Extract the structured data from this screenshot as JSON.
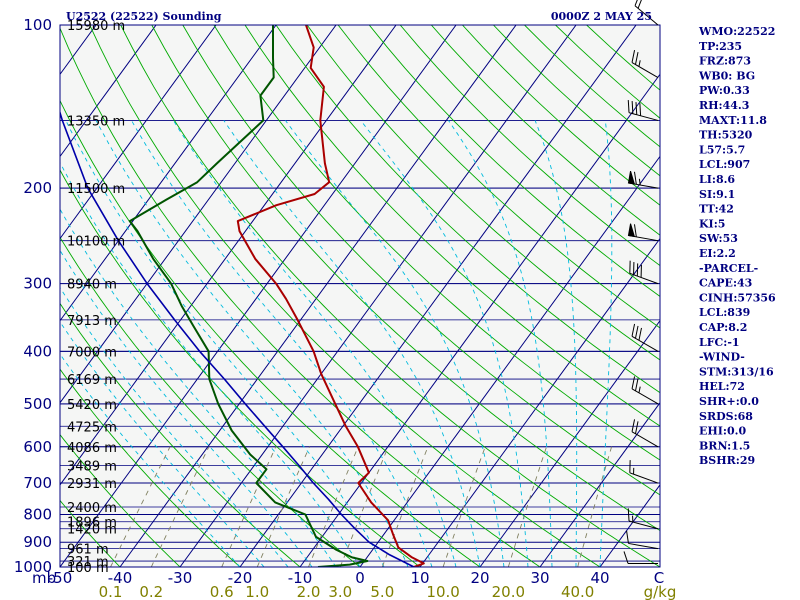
{
  "header": {
    "title": "U2522 (22522) Sounding",
    "time": "0000Z  2 MAY 25"
  },
  "colors": {
    "background": "#ffffff",
    "plot_background": "#f5f6f5",
    "isobar": "#000080",
    "isotherm": "#000080",
    "dry_adiabat": "#00aa00",
    "moist_adiabat": "#00bbdd",
    "mixing_ratio": "#808060",
    "temperature": "#aa0000",
    "dewpoint": "#005500",
    "parcel": "#0000aa",
    "wind_barb": "#000000"
  },
  "side_panel": [
    "WMO:22522",
    "TP:235",
    "FRZ:873",
    "WB0: BG",
    "PW:0.33",
    "RH:44.3",
    "MAXT:11.8",
    "TH:5320",
    "L57:5.7",
    "LCL:907",
    "LI:8.6",
    "SI:9.1",
    "TT:42",
    "KI:5",
    "SW:53",
    "EI:2.2",
    "-PARCEL-",
    "CAPE:43",
    "CINH:57356",
    "LCL:839",
    "CAP:8.2",
    "LFC:-1",
    "-WIND-",
    "STM:313/16",
    "HEL:72",
    "SHR+:0.0",
    "SRDS:68",
    "EHI:0.0",
    "BRN:1.5",
    "BSHR:29"
  ],
  "chart_data": {
    "type": "line",
    "title": "U2522 (22522) Sounding",
    "subtitle": "0000Z  2 MAY 25",
    "diagram": "skew-T log-P",
    "y_axis": {
      "label": "mb",
      "scale": "log",
      "ylim": [
        1000,
        100
      ],
      "ticks": [
        100,
        200,
        300,
        400,
        500,
        600,
        700,
        800,
        900,
        1000
      ],
      "tick_labels": [
        "100",
        "200",
        "300",
        "400",
        "500",
        "600",
        "700",
        "800",
        "900",
        "1000"
      ]
    },
    "x_axis": {
      "label": "C",
      "ticks": [
        -50,
        -40,
        -30,
        -20,
        -10,
        0,
        10,
        20,
        30,
        40
      ],
      "tick_labels": [
        "-50",
        "-40",
        "-30",
        "-20",
        "-10",
        "0",
        "10",
        "20",
        "30",
        "40"
      ],
      "xlim_at_1000mb": [
        -50,
        50
      ]
    },
    "mixing_ratio_axis": {
      "unit": "g/kg",
      "labels": [
        "0.1",
        "0.2",
        "0.6",
        "1.0",
        "2.0",
        "3.0",
        "5.0",
        "10.0",
        "20.0",
        "40.0"
      ],
      "values": [
        0.1,
        0.2,
        0.6,
        1.0,
        2.0,
        3.0,
        5.0,
        10.0,
        20.0,
        40.0
      ]
    },
    "height_labels": [
      {
        "p": 1000,
        "label": "100 m"
      },
      {
        "p": 975,
        "label": "321 m"
      },
      {
        "p": 925,
        "label": "961 m"
      },
      {
        "p": 850,
        "label": "1420 m"
      },
      {
        "p": 825,
        "label": "1896 m"
      },
      {
        "p": 775,
        "label": "2400 m"
      },
      {
        "p": 700,
        "label": "2931 m"
      },
      {
        "p": 650,
        "label": "3489 m"
      },
      {
        "p": 600,
        "label": "4086 m"
      },
      {
        "p": 550,
        "label": "4725 m"
      },
      {
        "p": 500,
        "label": "5420 m"
      },
      {
        "p": 450,
        "label": "6169 m"
      },
      {
        "p": 400,
        "label": "7000 m"
      },
      {
        "p": 350,
        "label": "7913 m"
      },
      {
        "p": 300,
        "label": "8940 m"
      },
      {
        "p": 250,
        "label": "10100 m"
      },
      {
        "p": 200,
        "label": "11500 m"
      },
      {
        "p": 150,
        "label": "13350 m"
      },
      {
        "p": 100,
        "label": "15980 m"
      }
    ],
    "series": [
      {
        "key": "temperature",
        "points": [
          {
            "p": 1000,
            "t": 9.0
          },
          {
            "p": 985,
            "t": 10.2
          },
          {
            "p": 960,
            "t": 7.5
          },
          {
            "p": 920,
            "t": 4.0
          },
          {
            "p": 870,
            "t": 1.5
          },
          {
            "p": 820,
            "t": -1.0
          },
          {
            "p": 760,
            "t": -6.0
          },
          {
            "p": 700,
            "t": -10.5
          },
          {
            "p": 670,
            "t": -10.0
          },
          {
            "p": 600,
            "t": -15.0
          },
          {
            "p": 550,
            "t": -19.5
          },
          {
            "p": 500,
            "t": -24.0
          },
          {
            "p": 440,
            "t": -30.0
          },
          {
            "p": 400,
            "t": -34.0
          },
          {
            "p": 350,
            "t": -40.5
          },
          {
            "p": 320,
            "t": -45.0
          },
          {
            "p": 300,
            "t": -48.5
          },
          {
            "p": 270,
            "t": -55.0
          },
          {
            "p": 240,
            "t": -61.0
          },
          {
            "p": 230,
            "t": -62.5
          },
          {
            "p": 215,
            "t": -58.0
          },
          {
            "p": 205,
            "t": -53.0
          },
          {
            "p": 195,
            "t": -52.0
          },
          {
            "p": 180,
            "t": -55.0
          },
          {
            "p": 150,
            "t": -61.0
          },
          {
            "p": 130,
            "t": -64.5
          },
          {
            "p": 120,
            "t": -69.0
          },
          {
            "p": 110,
            "t": -71.0
          },
          {
            "p": 100,
            "t": -75.0
          }
        ]
      },
      {
        "key": "dewpoint",
        "points": [
          {
            "p": 1000,
            "t": -7.0
          },
          {
            "p": 990,
            "t": -2.0
          },
          {
            "p": 975,
            "t": 0.5
          },
          {
            "p": 960,
            "t": -2.5
          },
          {
            "p": 930,
            "t": -6.0
          },
          {
            "p": 880,
            "t": -11.0
          },
          {
            "p": 800,
            "t": -15.5
          },
          {
            "p": 760,
            "t": -22.0
          },
          {
            "p": 700,
            "t": -27.5
          },
          {
            "p": 660,
            "t": -27.5
          },
          {
            "p": 620,
            "t": -32.0
          },
          {
            "p": 560,
            "t": -38.0
          },
          {
            "p": 500,
            "t": -43.5
          },
          {
            "p": 450,
            "t": -48.0
          },
          {
            "p": 400,
            "t": -51.5
          },
          {
            "p": 360,
            "t": -57.0
          },
          {
            "p": 330,
            "t": -61.5
          },
          {
            "p": 300,
            "t": -66.0
          },
          {
            "p": 270,
            "t": -72.0
          },
          {
            "p": 240,
            "t": -78.0
          },
          {
            "p": 230,
            "t": -80.5
          },
          {
            "p": 210,
            "t": -77.0
          },
          {
            "p": 195,
            "t": -74.0
          },
          {
            "p": 180,
            "t": -73.0
          },
          {
            "p": 150,
            "t": -70.5
          },
          {
            "p": 135,
            "t": -74.0
          },
          {
            "p": 125,
            "t": -74.0
          },
          {
            "p": 115,
            "t": -76.5
          },
          {
            "p": 100,
            "t": -80.5
          }
        ]
      },
      {
        "key": "parcel",
        "points": [
          {
            "p": 1000,
            "t": 9.0
          },
          {
            "p": 950,
            "t": 3.5
          },
          {
            "p": 900,
            "t": -1.5
          },
          {
            "p": 850,
            "t": -5.5
          },
          {
            "p": 800,
            "t": -9.5
          },
          {
            "p": 750,
            "t": -13.5
          },
          {
            "p": 700,
            "t": -18.0
          },
          {
            "p": 650,
            "t": -22.5
          },
          {
            "p": 600,
            "t": -27.5
          },
          {
            "p": 550,
            "t": -33.0
          },
          {
            "p": 500,
            "t": -39.0
          },
          {
            "p": 450,
            "t": -45.5
          },
          {
            "p": 400,
            "t": -53.0
          },
          {
            "p": 350,
            "t": -61.0
          },
          {
            "p": 300,
            "t": -70.0
          },
          {
            "p": 250,
            "t": -80.0
          },
          {
            "p": 200,
            "t": -91.5
          },
          {
            "p": 150,
            "t": -104.0
          },
          {
            "p": 120,
            "t": -113.0
          },
          {
            "p": 110,
            "t": -116.0
          }
        ]
      }
    ],
    "wind_barbs": [
      {
        "p": 985,
        "dir": 270,
        "kt": 10
      },
      {
        "p": 925,
        "dir": 280,
        "kt": 10
      },
      {
        "p": 850,
        "dir": 285,
        "kt": 15
      },
      {
        "p": 700,
        "dir": 290,
        "kt": 15
      },
      {
        "p": 600,
        "dir": 300,
        "kt": 20
      },
      {
        "p": 500,
        "dir": 300,
        "kt": 25
      },
      {
        "p": 400,
        "dir": 300,
        "kt": 30
      },
      {
        "p": 300,
        "dir": 290,
        "kt": 40
      },
      {
        "p": 250,
        "dir": 280,
        "kt": 60
      },
      {
        "p": 200,
        "dir": 280,
        "kt": 65
      },
      {
        "p": 150,
        "dir": 285,
        "kt": 40
      },
      {
        "p": 125,
        "dir": 300,
        "kt": 25
      },
      {
        "p": 100,
        "dir": 310,
        "kt": 20
      }
    ],
    "grid": true,
    "legend": "none"
  }
}
